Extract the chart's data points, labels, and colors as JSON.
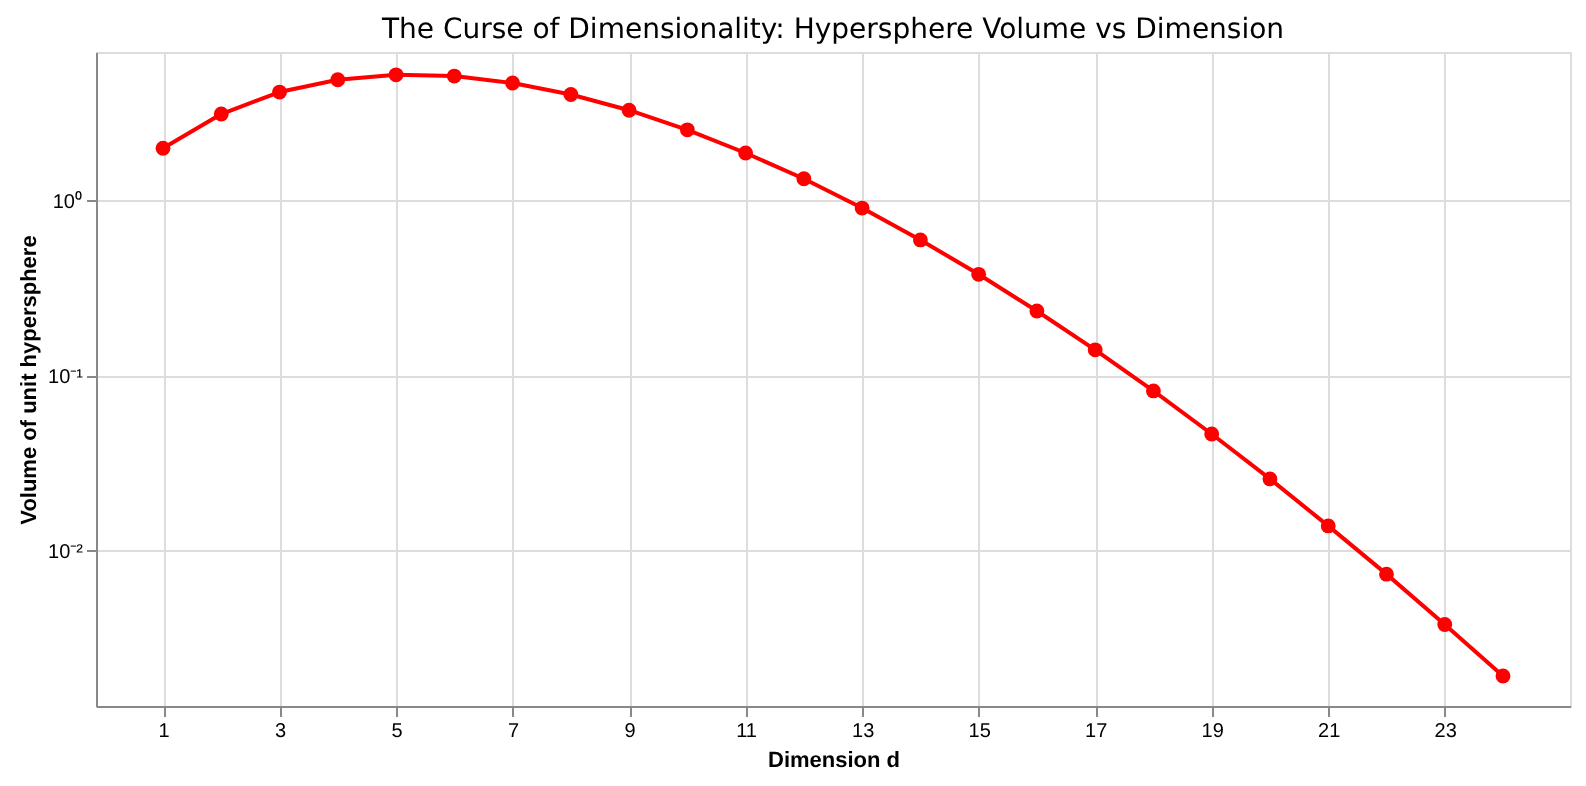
{
  "chart_data": {
    "type": "line",
    "title": "The Curse of Dimensionality: Hypersphere Volume vs Dimension",
    "xlabel": "Dimension d",
    "ylabel": "Volume of unit hypersphere",
    "x": [
      1,
      2,
      3,
      4,
      5,
      6,
      7,
      8,
      9,
      10,
      11,
      12,
      13,
      14,
      15,
      16,
      17,
      18,
      19,
      20,
      21,
      22,
      23,
      24
    ],
    "series": [
      {
        "color": "#ff0000",
        "values": [
          2.0,
          3.14,
          4.19,
          4.93,
          5.26,
          5.17,
          4.72,
          4.06,
          3.3,
          2.55,
          1.88,
          1.34,
          0.911,
          0.599,
          0.381,
          0.235,
          0.141,
          0.0821,
          0.0466,
          0.0258,
          0.0139,
          0.00737,
          0.0038,
          0.00193
        ]
      }
    ],
    "log": "y",
    "xlim": [
      -0.15,
      25.15
    ],
    "ylim": [
      0.0013,
      7.1
    ],
    "xticks": [
      1,
      3,
      5,
      7,
      9,
      11,
      13,
      15,
      17,
      19,
      21,
      23
    ],
    "yticks": [
      {
        "value": 0.01,
        "label": "10⁻²"
      },
      {
        "value": 0.1,
        "label": "10⁻¹"
      },
      {
        "value": 1,
        "label": "10⁰"
      }
    ],
    "grid": true,
    "marker": "circle",
    "line_style": "solid"
  }
}
